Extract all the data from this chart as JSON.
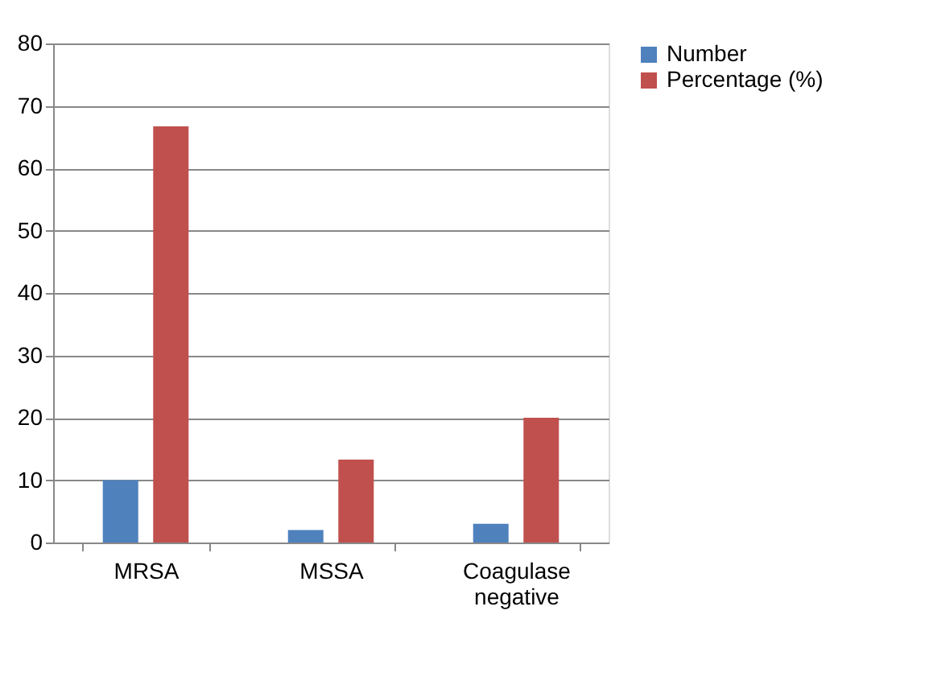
{
  "chart_data": {
    "type": "bar",
    "categories": [
      "MRSA",
      "MSSA",
      "Coagulase negative"
    ],
    "series": [
      {
        "name": "Number",
        "color": "#4f81bd",
        "values": [
          10,
          2,
          3
        ]
      },
      {
        "name": "Percentage (%)",
        "color": "#c0504d",
        "values": [
          66.7,
          13.3,
          20
        ]
      }
    ],
    "ylim": [
      0,
      80
    ],
    "yticks": [
      0,
      10,
      20,
      30,
      40,
      50,
      60,
      70,
      80
    ],
    "grid": "y",
    "legend": "right"
  }
}
